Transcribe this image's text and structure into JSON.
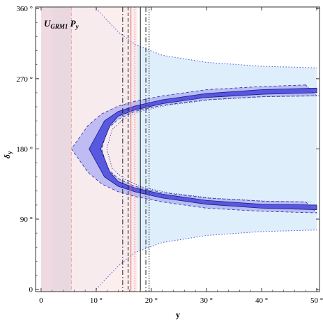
{
  "chart_data": {
    "type": "area",
    "title_main": "U",
    "title_sub": "GRM1",
    "title_tail": " P",
    "title_tail_sub": "y",
    "xlabel": "y",
    "ylabel_main": "δ",
    "ylabel_sub": "y",
    "xlim": [
      -1,
      50.5
    ],
    "ylim": [
      -3,
      362
    ],
    "x_ticks": [
      {
        "value": 0,
        "label": "0"
      },
      {
        "value": 10,
        "label": "10 °"
      },
      {
        "value": 20,
        "label": "20 °"
      },
      {
        "value": 30,
        "label": "30 °"
      },
      {
        "value": 40,
        "label": "40 °"
      },
      {
        "value": 50,
        "label": "50 °"
      }
    ],
    "y_ticks": [
      {
        "value": 0,
        "label": "0"
      },
      {
        "value": 90,
        "label": "90 °"
      },
      {
        "value": 180,
        "label": "180 °"
      },
      {
        "value": 270,
        "label": "270 °"
      },
      {
        "value": 360,
        "label": "360 °"
      }
    ],
    "bands": {
      "light_blue": {
        "color": "#dfeefb",
        "x_bounds": [
          2.0,
          50.0
        ],
        "upper_boundary": [
          [
            10,
            360
          ],
          [
            14,
            330
          ],
          [
            17,
            314
          ],
          [
            22,
            300
          ],
          [
            30,
            291
          ],
          [
            40,
            286
          ],
          [
            50,
            284
          ]
        ],
        "lower_boundary": [
          [
            10,
            0
          ],
          [
            14,
            30
          ],
          [
            17,
            47
          ],
          [
            22,
            60
          ],
          [
            30,
            69
          ],
          [
            40,
            74
          ],
          [
            50,
            76
          ]
        ]
      },
      "red_strip": {
        "color": "#ecd3dc",
        "x_range": [
          0,
          5.5
        ]
      },
      "pink_region": {
        "color": "#fdeaea",
        "x_range": [
          5.5,
          17.5
        ]
      },
      "outer_c_1sigma": {
        "color": "#b4b4f2",
        "outer": [
          [
            48,
            262
          ],
          [
            40,
            260
          ],
          [
            30,
            256
          ],
          [
            22,
            248
          ],
          [
            17,
            241
          ],
          [
            14,
            235
          ],
          [
            11,
            225
          ],
          [
            8.5,
            210
          ],
          [
            5.5,
            180
          ],
          [
            8.5,
            150
          ],
          [
            11,
            135
          ],
          [
            14,
            125
          ],
          [
            17,
            119
          ],
          [
            22,
            112
          ],
          [
            30,
            104
          ],
          [
            40,
            100
          ],
          [
            50,
            98
          ]
        ],
        "inner": [
          [
            50,
            248
          ],
          [
            40,
            247
          ],
          [
            30,
            243
          ],
          [
            22,
            236
          ],
          [
            17,
            228
          ],
          [
            14,
            218
          ],
          [
            12,
            205
          ],
          [
            11,
            180
          ],
          [
            12,
            155
          ],
          [
            14,
            142
          ],
          [
            17,
            132
          ],
          [
            22,
            124
          ],
          [
            30,
            117
          ],
          [
            40,
            113
          ],
          [
            48,
            112
          ]
        ]
      },
      "core_c": {
        "color": "#4c4cdf",
        "outer": [
          [
            50,
            258
          ],
          [
            40,
            256
          ],
          [
            30,
            251
          ],
          [
            22,
            243
          ],
          [
            17,
            235
          ],
          [
            14,
            228
          ],
          [
            11.5,
            216
          ],
          [
            8.7,
            180
          ],
          [
            11.5,
            144
          ],
          [
            14,
            132
          ],
          [
            17,
            125
          ],
          [
            22,
            117
          ],
          [
            30,
            109
          ],
          [
            40,
            104
          ],
          [
            50,
            102
          ]
        ],
        "inner": [
          [
            50,
            252
          ],
          [
            40,
            250
          ],
          [
            30,
            246
          ],
          [
            22,
            238
          ],
          [
            17,
            230
          ],
          [
            14,
            222
          ],
          [
            12.5,
            210
          ],
          [
            10.8,
            180
          ],
          [
            12.5,
            150
          ],
          [
            14,
            138
          ],
          [
            17,
            130
          ],
          [
            22,
            122
          ],
          [
            30,
            114
          ],
          [
            40,
            109
          ],
          [
            50,
            108
          ]
        ]
      }
    },
    "vertical_lines": [
      {
        "x": 5.5,
        "style": "dashed",
        "color": "#f0a0a0"
      },
      {
        "x": 14.8,
        "style": "dashdot",
        "color": "#000000"
      },
      {
        "x": 15.8,
        "style": "dashed",
        "color": "#000000"
      },
      {
        "x": 16.3,
        "style": "solid",
        "color": "#e06060"
      },
      {
        "x": 17.0,
        "style": "dotted",
        "color": "#e06060"
      },
      {
        "x": 18.0,
        "style": "solid",
        "color": "#000000"
      },
      {
        "x": 19.0,
        "style": "dashdot",
        "color": "#000000"
      },
      {
        "x": 19.6,
        "style": "dotted",
        "color": "#000000"
      }
    ]
  }
}
